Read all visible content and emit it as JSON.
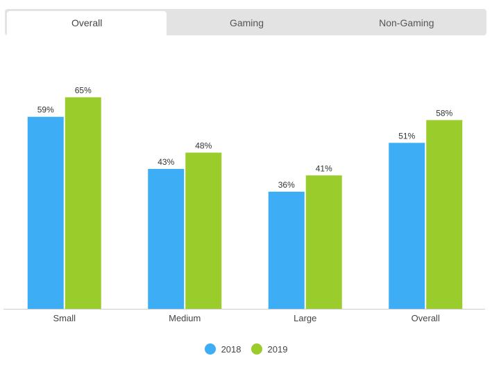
{
  "tabs": [
    {
      "label": "Overall",
      "active": true
    },
    {
      "label": "Gaming",
      "active": false
    },
    {
      "label": "Non-Gaming",
      "active": false
    }
  ],
  "chart_data": {
    "type": "bar",
    "categories": [
      "Small",
      "Medium",
      "Large",
      "Overall"
    ],
    "series": [
      {
        "name": "2018",
        "color": "#3daef5",
        "values": [
          59,
          43,
          36,
          51
        ],
        "labels": [
          "59%",
          "43%",
          "36%",
          "51%"
        ]
      },
      {
        "name": "2019",
        "color": "#9acd2c",
        "values": [
          65,
          48,
          41,
          58
        ],
        "labels": [
          "65%",
          "48%",
          "41%",
          "58%"
        ]
      }
    ],
    "ylim": [
      0,
      100
    ],
    "grid": false,
    "legend_position": "bottom-center",
    "xlabel": "",
    "ylabel": ""
  }
}
